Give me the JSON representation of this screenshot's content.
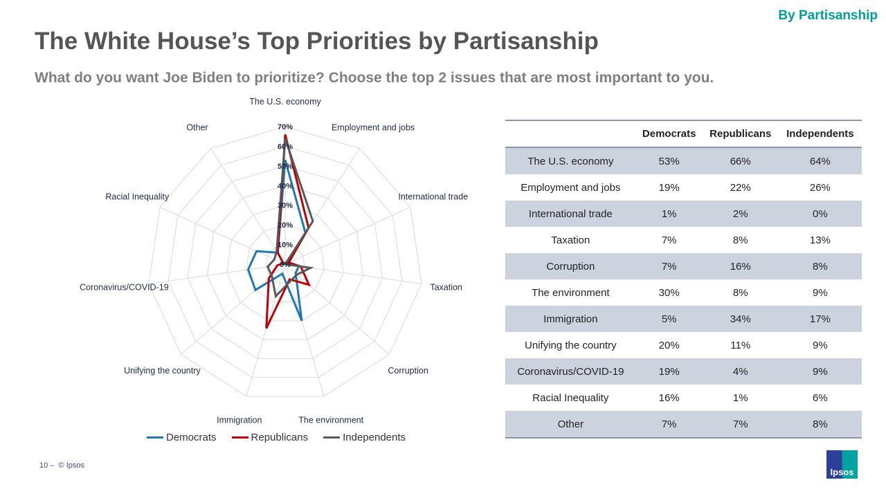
{
  "header": {
    "tag": "By Partisanship",
    "title": "The White House’s Top Priorities by Partisanship",
    "subtitle": "What do you want Joe Biden to prioritize? Choose the top 2 issues that are most important to you."
  },
  "chart_data": {
    "type": "radar",
    "categories": [
      "The U.S. economy",
      "Employment and jobs",
      "International trade",
      "Taxation",
      "Corruption",
      "The environment",
      "Immigration",
      "Unifying the country",
      "Coronavirus/COVID-19",
      "Racial Inequality",
      "Other"
    ],
    "ticks": [
      "0%",
      "10%",
      "20%",
      "30%",
      "40%",
      "50%",
      "60%",
      "70%"
    ],
    "rlim": [
      0,
      70
    ],
    "legend_position": "bottom",
    "series": [
      {
        "name": "Democrats",
        "color": "#1f77b4",
        "values": [
          53,
          19,
          1,
          7,
          7,
          30,
          5,
          20,
          19,
          16,
          7
        ]
      },
      {
        "name": "Republicans",
        "color": "#c00000",
        "values": [
          66,
          22,
          2,
          8,
          16,
          8,
          34,
          11,
          4,
          1,
          7
        ]
      },
      {
        "name": "Independents",
        "color": "#595959",
        "values": [
          64,
          26,
          0,
          13,
          8,
          9,
          17,
          9,
          9,
          6,
          8
        ]
      }
    ]
  },
  "table": {
    "headers": [
      "",
      "Democrats",
      "Republicans",
      "Independents"
    ],
    "rows": [
      [
        "The U.S. economy",
        "53%",
        "66%",
        "64%"
      ],
      [
        "Employment and jobs",
        "19%",
        "22%",
        "26%"
      ],
      [
        "International trade",
        "1%",
        "2%",
        "0%"
      ],
      [
        "Taxation",
        "7%",
        "8%",
        "13%"
      ],
      [
        "Corruption",
        "7%",
        "16%",
        "8%"
      ],
      [
        "The environment",
        "30%",
        "8%",
        "9%"
      ],
      [
        "Immigration",
        "5%",
        "34%",
        "17%"
      ],
      [
        "Unifying the country",
        "20%",
        "11%",
        "9%"
      ],
      [
        "Coronavirus/COVID-19",
        "19%",
        "4%",
        "9%"
      ],
      [
        "Racial Inequality",
        "16%",
        "1%",
        "6%"
      ],
      [
        "Other",
        "7%",
        "7%",
        "8%"
      ]
    ]
  },
  "footer": {
    "page": "10 –",
    "copyright": "© Ipsos",
    "logo": "Ipsos"
  }
}
